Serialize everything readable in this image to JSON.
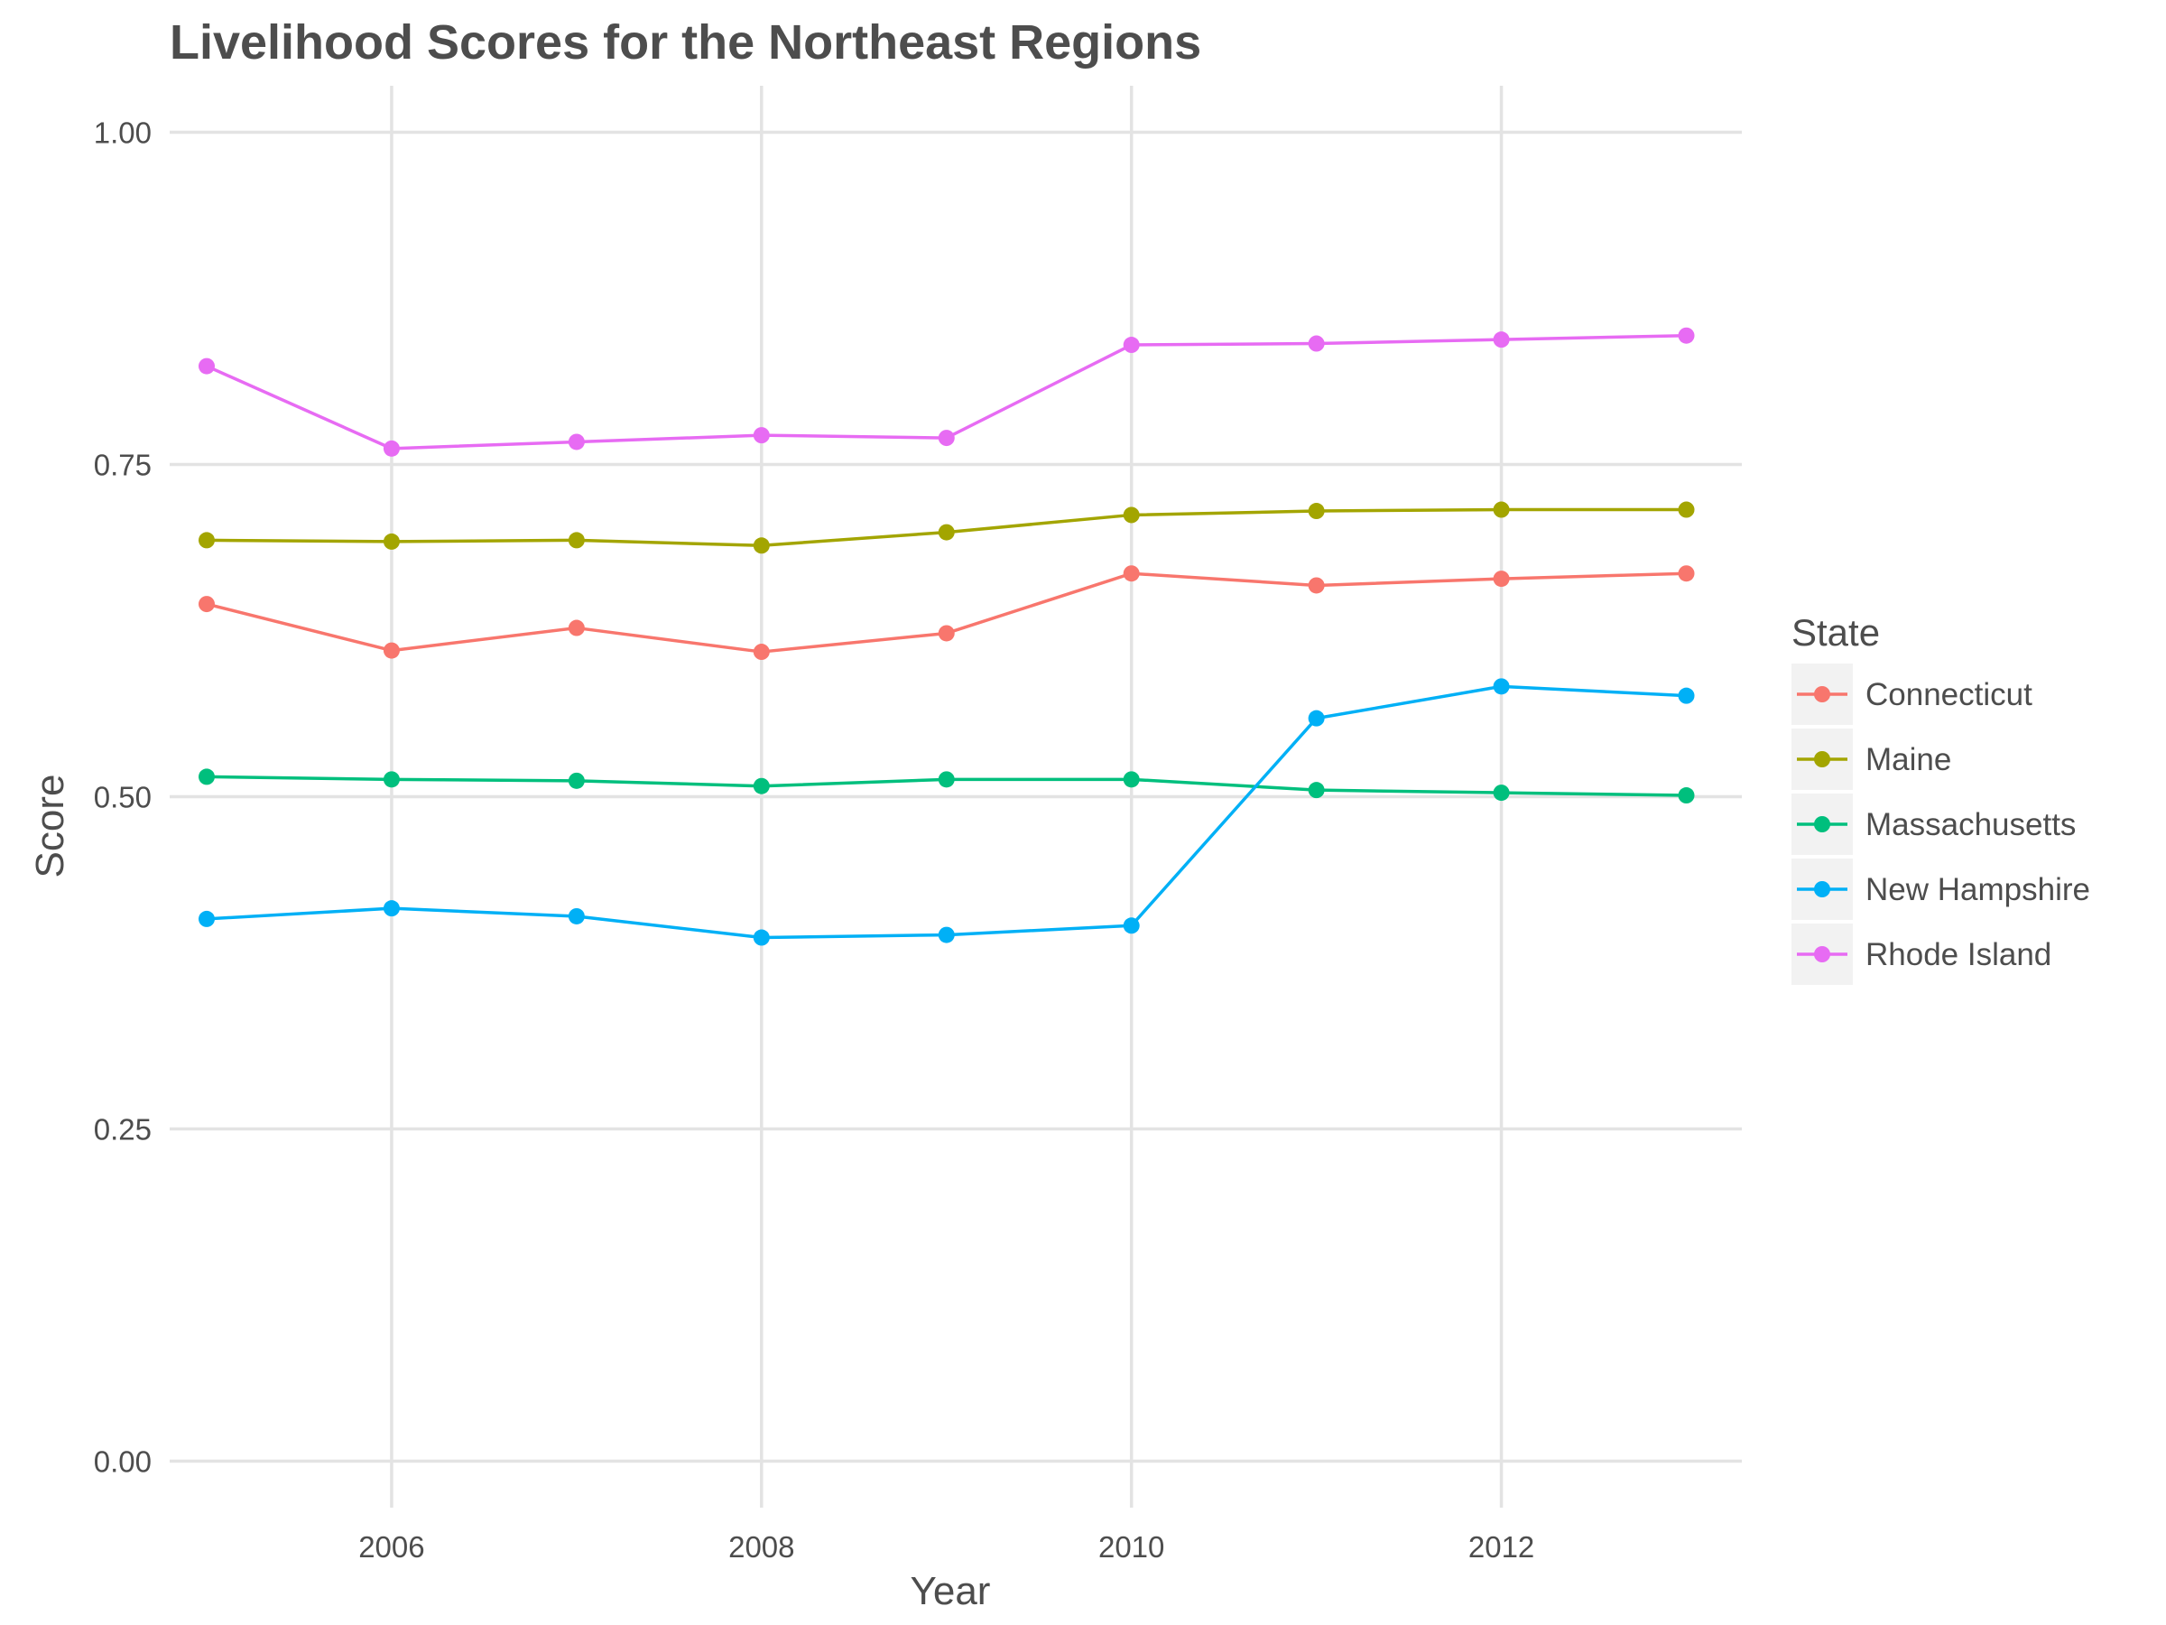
{
  "chart_data": {
    "type": "line",
    "title": "Livelihood Scores for the Northeast Regions",
    "xlabel": "Year",
    "ylabel": "Score",
    "xlim": [
      2004.8,
      2013.3
    ],
    "ylim": [
      -0.035,
      1.035
    ],
    "x_ticks": [
      2006,
      2008,
      2010,
      2012
    ],
    "y_ticks": [
      0,
      0.25,
      0.5,
      0.75,
      1.0
    ],
    "x_tick_labels": [
      "2006",
      "2008",
      "2010",
      "2012"
    ],
    "y_tick_labels": [
      "0.00",
      "0.25",
      "0.50",
      "0.75",
      "1.00"
    ],
    "grid": true,
    "legend": {
      "title": "State",
      "position": "right"
    },
    "x": [
      2005,
      2006,
      2007,
      2008,
      2009,
      2010,
      2011,
      2012,
      2013
    ],
    "series": [
      {
        "name": "Connecticut",
        "color": "#F8766D",
        "values": [
          0.645,
          0.61,
          0.627,
          0.609,
          0.623,
          0.668,
          0.659,
          0.664,
          0.668
        ]
      },
      {
        "name": "Maine",
        "color": "#A3A500",
        "values": [
          0.693,
          0.692,
          0.693,
          0.689,
          0.699,
          0.712,
          0.715,
          0.716,
          0.716
        ]
      },
      {
        "name": "Massachusetts",
        "color": "#00BF7D",
        "values": [
          0.515,
          0.513,
          0.512,
          0.508,
          0.513,
          0.513,
          0.505,
          0.503,
          0.501
        ]
      },
      {
        "name": "New Hampshire",
        "color": "#00B0F6",
        "values": [
          0.408,
          0.416,
          0.41,
          0.394,
          0.396,
          0.403,
          0.559,
          0.583,
          0.576
        ]
      },
      {
        "name": "Rhode Island",
        "color": "#E76BF3",
        "values": [
          0.824,
          0.762,
          0.767,
          0.772,
          0.77,
          0.84,
          0.841,
          0.844,
          0.847
        ]
      }
    ]
  }
}
